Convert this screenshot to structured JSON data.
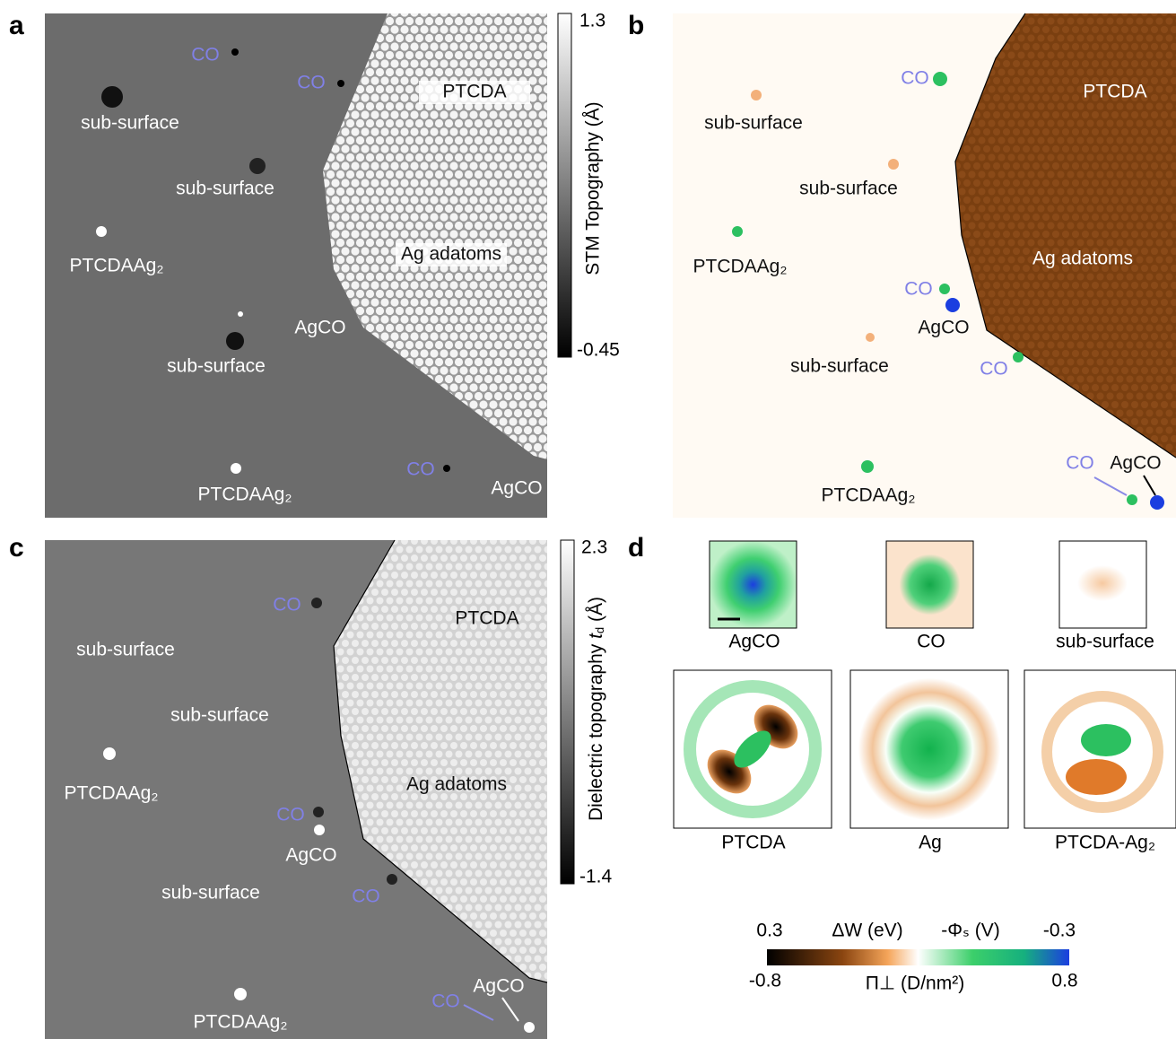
{
  "panels": [
    {
      "label": "a",
      "annotations": [
        "CO",
        "CO",
        "PTCDA",
        "sub-surface",
        "sub-surface",
        "PTCDAAg₂",
        "Ag adatoms",
        "AgCO",
        "sub-surface",
        "CO",
        "PTCDAAg₂",
        "AgCO"
      ],
      "colorbar": {
        "max": "1.3",
        "min": "-0.45",
        "title": "STM Topography (Å)"
      }
    },
    {
      "label": "b",
      "annotations": [
        "CO",
        "PTCDA",
        "sub-surface",
        "sub-surface",
        "PTCDAAg₂",
        "Ag adatoms",
        "CO",
        "AgCO",
        "sub-surface",
        "CO",
        "CO",
        "AgCO",
        "PTCDAAg₂"
      ]
    },
    {
      "label": "c",
      "annotations": [
        "CO",
        "PTCDA",
        "sub-surface",
        "sub-surface",
        "PTCDAAg₂",
        "Ag adatoms",
        "CO",
        "AgCO",
        "sub-surface",
        "CO",
        "AgCO",
        "CO",
        "PTCDAAg₂"
      ],
      "colorbar": {
        "max": "2.3",
        "min": "-1.4",
        "title": {
          "text": "Dielectric topography ",
          "var": "t",
          "sub": "d",
          "unit": " (Å)"
        }
      }
    },
    {
      "label": "d",
      "thumbnails": [
        "AgCO",
        "CO",
        "sub-surface",
        "PTCDA",
        "Ag",
        "PTCDA-Ag₂"
      ],
      "colorbar": {
        "top_left": "0.3",
        "top_title_1": "ΔW (eV)",
        "top_title_2": "-Φₛ (V)",
        "top_right": "-0.3",
        "bottom_left": "-0.8",
        "bottom_title": "Π⊥ (D/nm²)",
        "bottom_right": "0.8"
      }
    }
  ]
}
